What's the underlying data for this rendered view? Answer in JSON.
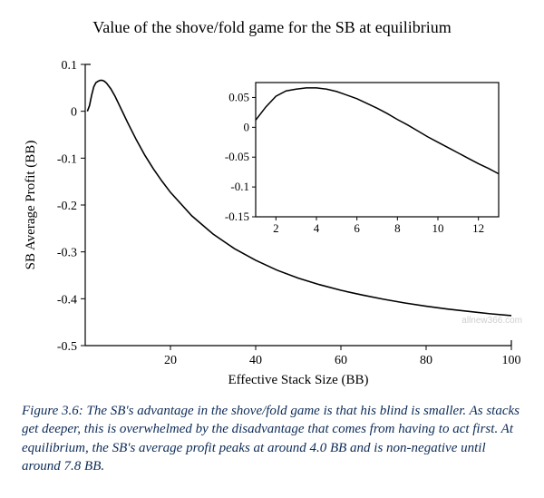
{
  "title": "Value of the shove/fold game for the SB at equilibrium",
  "main_chart": {
    "type": "line",
    "xlabel": "Effective Stack Size (BB)",
    "ylabel": "SB Average Profit (BB)",
    "label_fontsize": 15,
    "xlim": [
      0,
      100
    ],
    "ylim": [
      -0.5,
      0.1
    ],
    "xticks": [
      20,
      40,
      60,
      80,
      100
    ],
    "yticks": [
      -0.5,
      -0.4,
      -0.3,
      -0.2,
      -0.1,
      0,
      0.1
    ],
    "line_color": "#000000",
    "line_width": 1.6,
    "axis_color": "#000000",
    "background_color": "#ffffff",
    "tick_fontsize": 14,
    "data": {
      "x": [
        0.5,
        1,
        1.5,
        2,
        2.5,
        3,
        3.5,
        4,
        4.5,
        5,
        6,
        7,
        8,
        9,
        10,
        12,
        14,
        16,
        18,
        20,
        25,
        30,
        35,
        40,
        45,
        50,
        55,
        60,
        65,
        70,
        75,
        80,
        85,
        90,
        95,
        100
      ],
      "y": [
        0.0,
        0.012,
        0.034,
        0.052,
        0.061,
        0.064,
        0.066,
        0.066,
        0.064,
        0.06,
        0.048,
        0.032,
        0.013,
        -0.006,
        -0.025,
        -0.061,
        -0.094,
        -0.123,
        -0.149,
        -0.173,
        -0.223,
        -0.262,
        -0.293,
        -0.318,
        -0.339,
        -0.356,
        -0.37,
        -0.382,
        -0.392,
        -0.401,
        -0.409,
        -0.416,
        -0.422,
        -0.427,
        -0.432,
        -0.436
      ]
    }
  },
  "inset_chart": {
    "type": "line",
    "xlim": [
      1,
      13
    ],
    "ylim": [
      -0.15,
      0.075
    ],
    "xticks": [
      2,
      4,
      6,
      8,
      10,
      12
    ],
    "yticks": [
      -0.15,
      -0.1,
      -0.05,
      0,
      0.05
    ],
    "line_color": "#000000",
    "line_width": 1.5,
    "axis_color": "#000000",
    "frame_color": "#000000",
    "background_color": "#ffffff",
    "tick_fontsize": 13,
    "data": {
      "x": [
        1,
        1.5,
        2,
        2.5,
        3,
        3.5,
        4,
        4.5,
        5,
        5.5,
        6,
        6.5,
        7,
        7.5,
        8,
        8.5,
        9,
        9.5,
        10,
        10.5,
        11,
        11.5,
        12,
        12.5,
        13
      ],
      "y": [
        0.012,
        0.034,
        0.052,
        0.061,
        0.064,
        0.066,
        0.066,
        0.064,
        0.06,
        0.054,
        0.048,
        0.04,
        0.032,
        0.023,
        0.013,
        0.004,
        -0.006,
        -0.016,
        -0.025,
        -0.034,
        -0.043,
        -0.052,
        -0.061,
        -0.069,
        -0.078
      ]
    }
  },
  "caption": "Figure 3.6: The SB's advantage in the shove/fold game is that his blind is smaller. As stacks get deeper, this is overwhelmed by the disadvantage that comes from having to act first. At equilibrium, the SB's average profit peaks at around 4.0 BB and is non-negative until around 7.8 BB.",
  "watermark": "allnew366.com"
}
